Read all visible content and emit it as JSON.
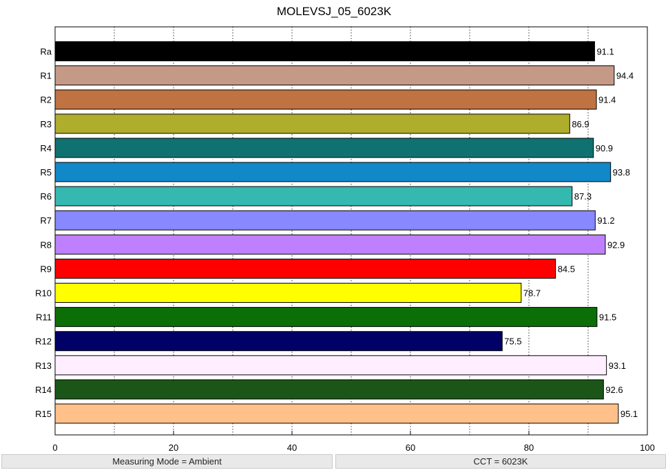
{
  "chart_data": {
    "type": "bar",
    "orientation": "horizontal",
    "title": "MOLEVSJ_05_6023K",
    "xlabel": "",
    "ylabel": "",
    "xlim": [
      0,
      100
    ],
    "xticks": [
      0,
      20,
      40,
      60,
      80,
      100
    ],
    "grid": "vertical dotted every 10",
    "categories": [
      "Ra",
      "R1",
      "R2",
      "R3",
      "R4",
      "R5",
      "R6",
      "R7",
      "R8",
      "R9",
      "R10",
      "R11",
      "R12",
      "R13",
      "R14",
      "R15"
    ],
    "values": [
      91.1,
      94.4,
      91.4,
      86.9,
      90.9,
      93.8,
      87.3,
      91.2,
      92.9,
      84.5,
      78.7,
      91.5,
      75.5,
      93.1,
      92.6,
      95.1
    ],
    "value_labels": [
      "91.1",
      "94.4",
      "91.4",
      "86.9",
      "90.9",
      "93.8",
      "87.3",
      "91.2",
      "92.9",
      "84.5",
      "78.7",
      "91.5",
      "75.5",
      "93.1",
      "92.6",
      "95.1"
    ],
    "colors": [
      "#000000",
      "#c49a87",
      "#bf7242",
      "#aead2c",
      "#107270",
      "#1188c8",
      "#35b8b0",
      "#8888ff",
      "#bf80ff",
      "#ff0000",
      "#ffff00",
      "#0b6e06",
      "#000066",
      "#ffeeff",
      "#1b5618",
      "#ffc08a"
    ]
  },
  "status": {
    "left": "Measuring Mode = Ambient",
    "right": "CCT = 6023K"
  }
}
